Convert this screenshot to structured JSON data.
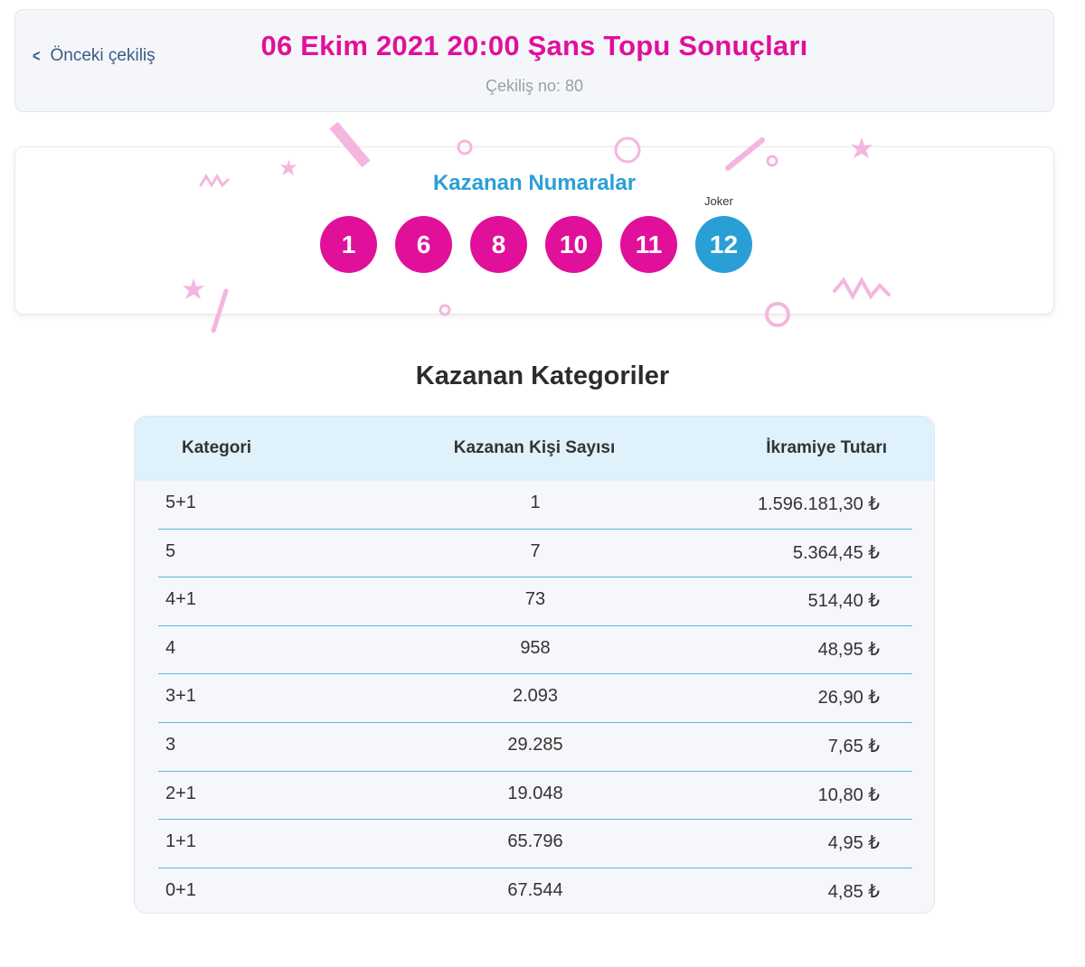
{
  "header": {
    "prev_label": "Önceki çekiliş",
    "title": "06 Ekim 2021 20:00 Şans Topu Sonuçları",
    "draw_no": "Çekiliş no: 80"
  },
  "numbers": {
    "title": "Kazanan Numaralar",
    "balls": [
      "1",
      "6",
      "8",
      "10",
      "11"
    ],
    "joker_label": "Joker",
    "joker": "12"
  },
  "categories": {
    "title": "Kazanan Kategoriler",
    "headers": [
      "Kategori",
      "Kazanan Kişi Sayısı",
      "İkramiye Tutarı"
    ],
    "rows": [
      {
        "cat": "5+1",
        "count": "1",
        "amount": "1.596.181,30 ₺"
      },
      {
        "cat": "5",
        "count": "7",
        "amount": "5.364,45 ₺"
      },
      {
        "cat": "4+1",
        "count": "73",
        "amount": "514,40 ₺"
      },
      {
        "cat": "4",
        "count": "958",
        "amount": "48,95 ₺"
      },
      {
        "cat": "3+1",
        "count": "2.093",
        "amount": "26,90 ₺"
      },
      {
        "cat": "3",
        "count": "29.285",
        "amount": "7,65 ₺"
      },
      {
        "cat": "2+1",
        "count": "19.048",
        "amount": "10,80 ₺"
      },
      {
        "cat": "1+1",
        "count": "65.796",
        "amount": "4,95 ₺"
      },
      {
        "cat": "0+1",
        "count": "67.544",
        "amount": "4,85 ₺"
      }
    ]
  },
  "colors": {
    "accent_pink": "#e0109a",
    "accent_blue": "#2a9fd6",
    "confetti": "#f4b6df"
  }
}
